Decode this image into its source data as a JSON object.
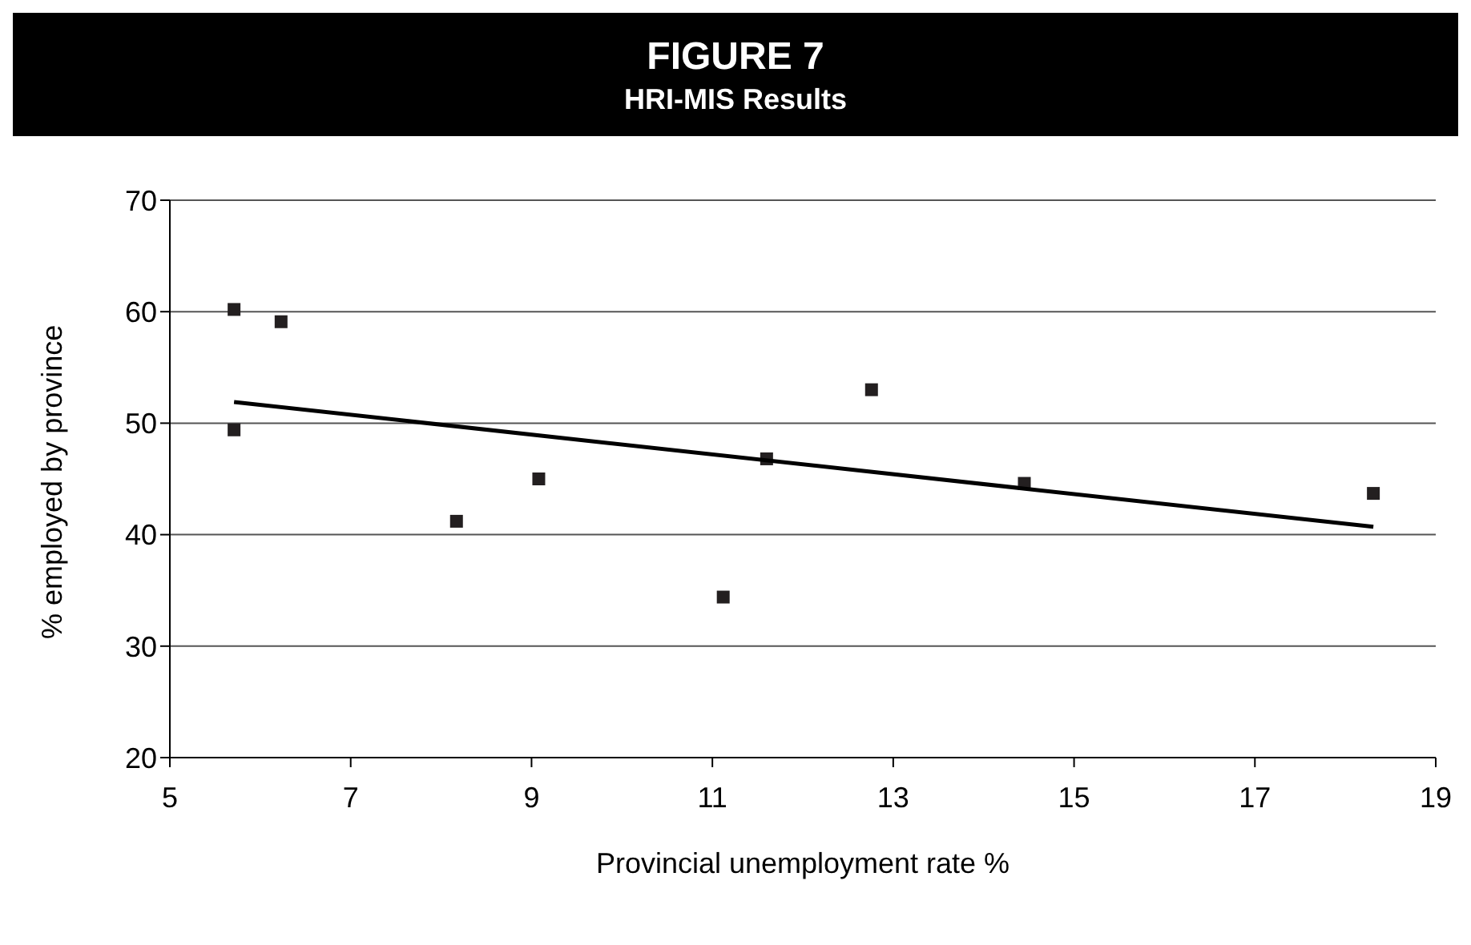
{
  "chart_data": {
    "type": "scatter",
    "title": "FIGURE 7",
    "subtitle": "HRI-MIS Results",
    "xlabel": "Provincial unemployment rate %",
    "ylabel": "% employed by province",
    "series": [
      {
        "color": "#231f20",
        "x": [
          5.71,
          6.23,
          5.71,
          8.17,
          9.08,
          11.12,
          11.6,
          12.76,
          14.45,
          18.31
        ],
        "values": [
          60.2,
          59.1,
          49.4,
          41.2,
          45.0,
          34.4,
          46.8,
          53.0,
          44.6,
          43.7
        ]
      },
      {
        "type": "line",
        "marker": "none",
        "color": "#000000",
        "x": [
          5.71,
          18.31
        ],
        "values": [
          51.9,
          40.7
        ]
      }
    ],
    "marker": "square",
    "xlim": [
      5,
      19
    ],
    "xticks": [
      5,
      7,
      9,
      11,
      13,
      15,
      17,
      19
    ],
    "ylim": [
      20,
      70
    ],
    "yticks": [
      20,
      30,
      40,
      50,
      60,
      70
    ],
    "grid": "y",
    "legend": false
  }
}
